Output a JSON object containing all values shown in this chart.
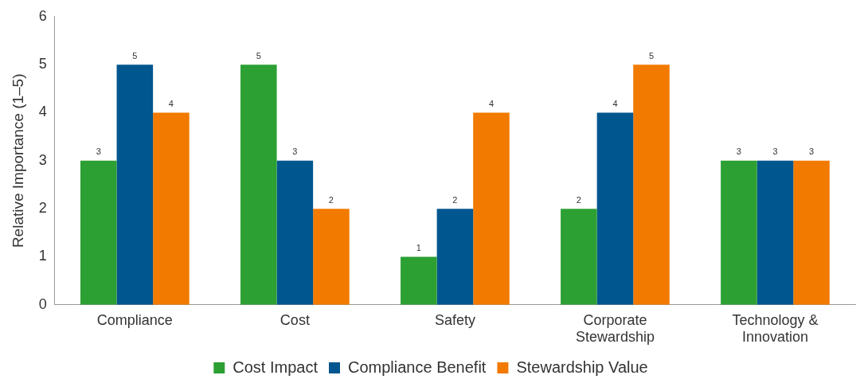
{
  "chart_data": {
    "type": "bar",
    "ylabel": "Relative Importance (1–5)",
    "categories": [
      "Compliance",
      "Cost",
      "Safety",
      "Corporate Stewardship",
      "Technology & Innovation"
    ],
    "series": [
      {
        "name": "Cost Impact",
        "color": "#2ca033",
        "values": [
          3,
          5,
          1,
          2,
          3
        ]
      },
      {
        "name": "Compliance Benefit",
        "color": "#00568e",
        "values": [
          5,
          3,
          2,
          4,
          3
        ]
      },
      {
        "name": "Stewardship Value",
        "color": "#f27a00",
        "values": [
          4,
          2,
          4,
          5,
          3
        ]
      }
    ],
    "ylim": [
      0,
      6
    ],
    "yticks": [
      0,
      1,
      2,
      3,
      4,
      5,
      6
    ],
    "grid": false,
    "legend": "bottom",
    "data_labels": true
  }
}
